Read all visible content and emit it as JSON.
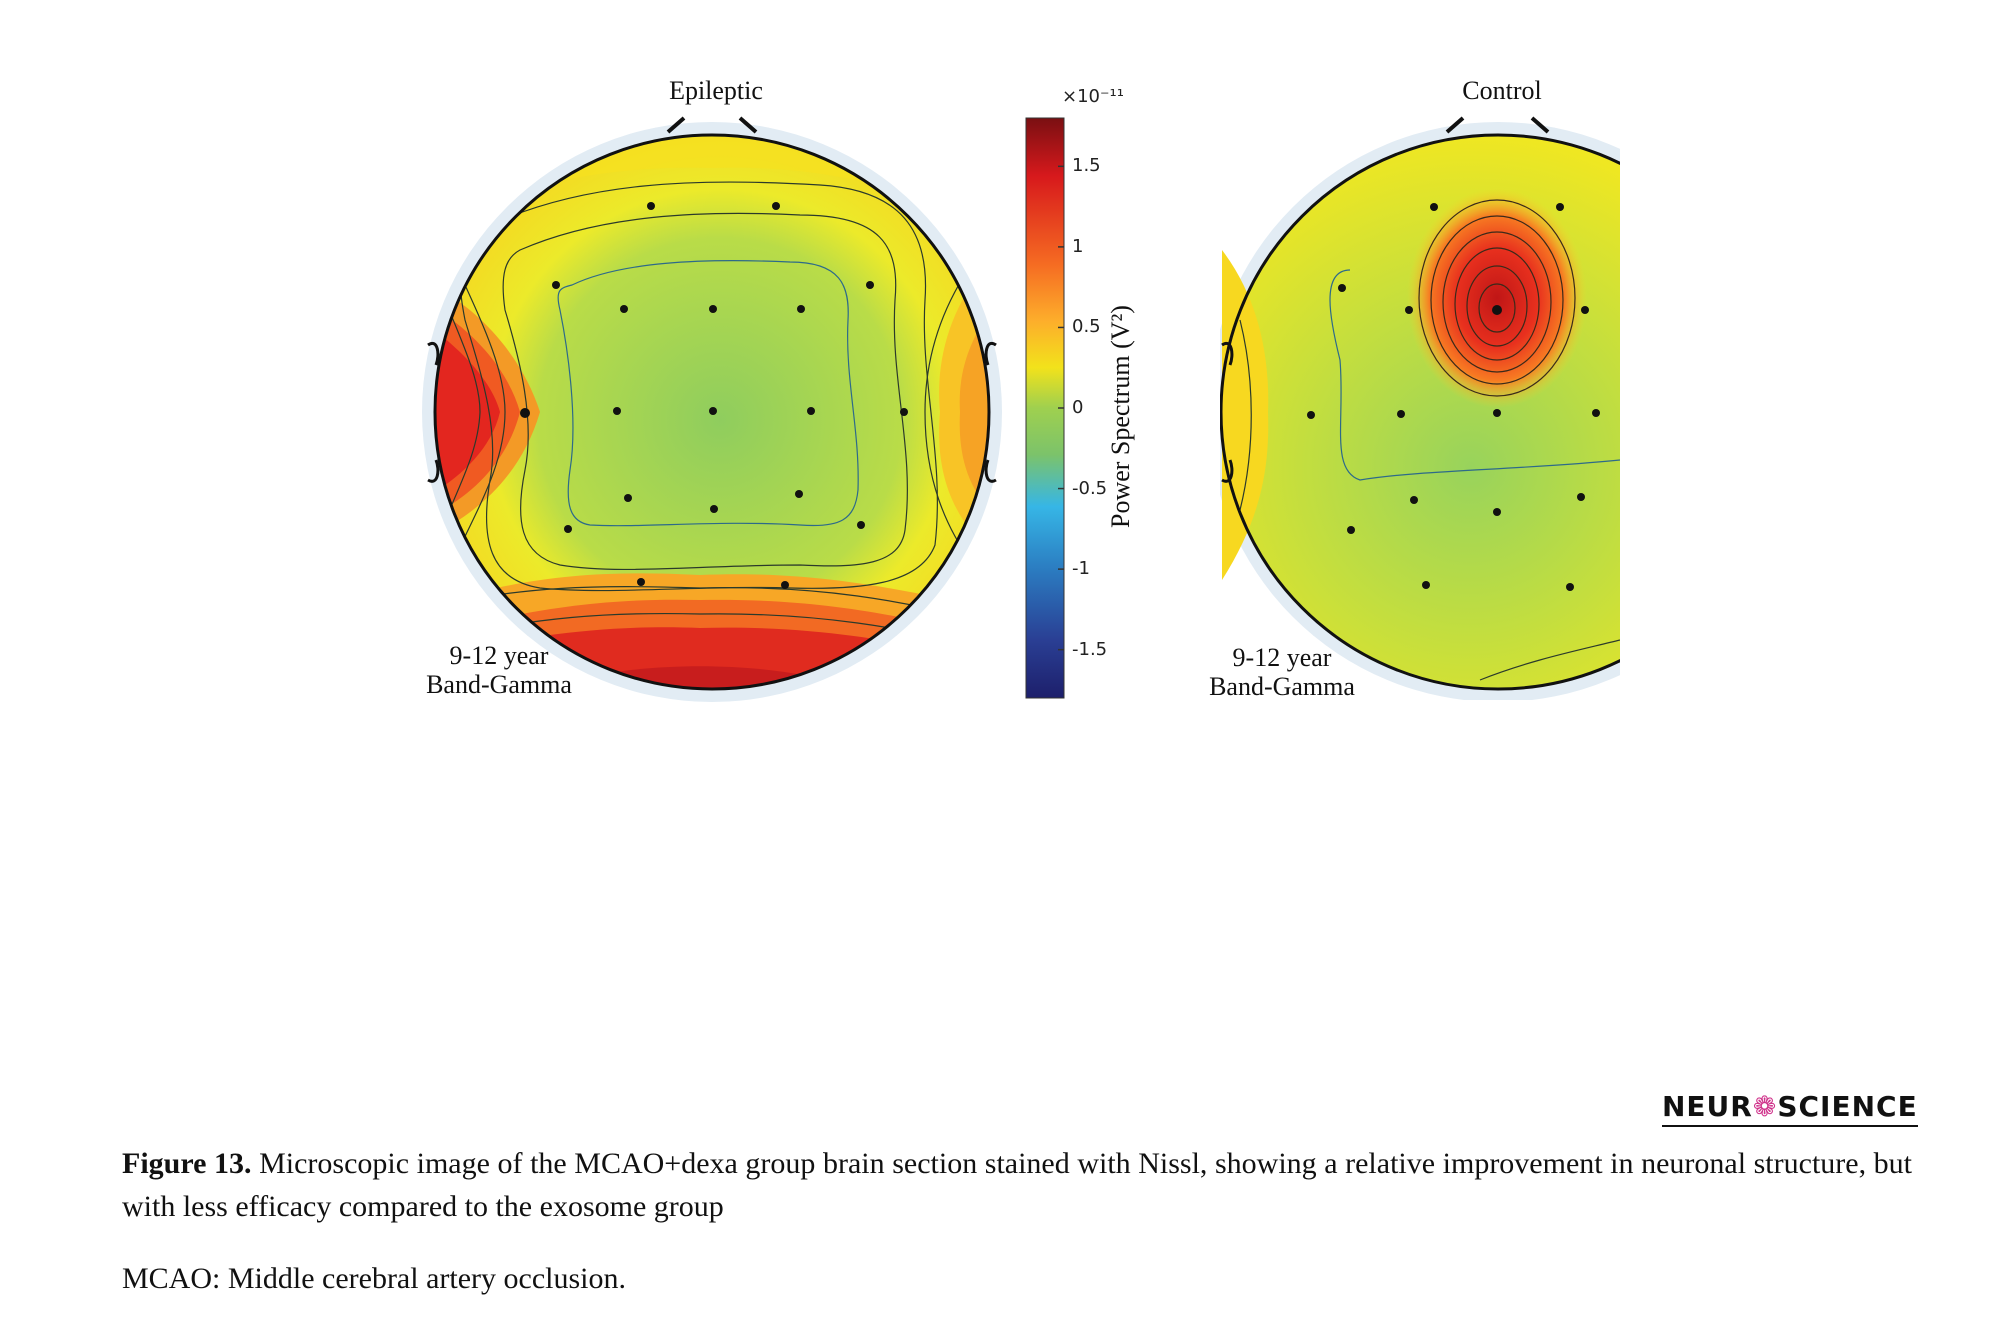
{
  "figure": {
    "left_panel": {
      "title": "Epileptic",
      "age_label": "9-12 year",
      "band_label": "Band-Gamma"
    },
    "right_panel": {
      "title": "Control",
      "age_label": "9-12 year",
      "band_label": "Band-Gamma"
    },
    "colorbar": {
      "title": "Power Spectrum (V²)",
      "exponent": "×10⁻¹¹",
      "ticks": [
        "1.5",
        "1",
        "0.5",
        "0",
        "-0.5",
        "-1",
        "-1.5"
      ],
      "tick_values": [
        1.5,
        1,
        0.5,
        0,
        -0.5,
        -1,
        -1.5
      ],
      "range": [
        -1.8,
        1.8
      ],
      "colors": [
        "#7a0f12",
        "#d7191c",
        "#f56a22",
        "#fdae2b",
        "#f2e21b",
        "#c5df3a",
        "#86c95b",
        "#36b6e6",
        "#2b7bc0",
        "#2a3f94",
        "#1d1f6b"
      ]
    }
  },
  "logo": {
    "part1": "NEUR",
    "icon": "brain-icon",
    "part2": "SCIENCE"
  },
  "caption": {
    "label": "Figure 13.",
    "text": " Microscopic image of the MCAO+dexa group brain section stained with Nissl, showing a relative improvement in neuronal structure, but with less efficacy compared to the exosome group"
  },
  "abbreviation": "MCAO: Middle cerebral artery occlusion."
}
